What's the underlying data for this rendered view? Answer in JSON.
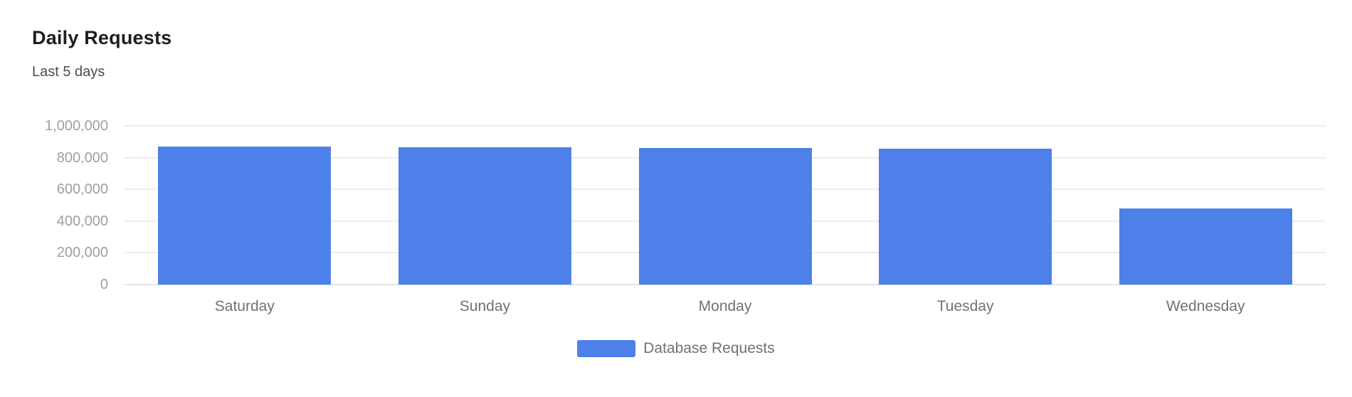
{
  "header": {
    "title": "Daily Requests",
    "subtitle": "Last 5 days"
  },
  "legend": {
    "label": "Database Requests"
  },
  "colors": {
    "bar": "#4d81e9",
    "grid": "#ededed",
    "axis_line": "#e4e4e4",
    "y_tick_text": "#9aa0a6",
    "x_tick_text": "#6e7277",
    "legend_text": "#6e7277",
    "title_text": "#1c1e21",
    "subtitle_text": "#474c54",
    "background": "#ffffff"
  },
  "chart_data": {
    "type": "bar",
    "title": "Daily Requests",
    "subtitle": "Last 5 days",
    "categories": [
      "Saturday",
      "Sunday",
      "Monday",
      "Tuesday",
      "Wednesday"
    ],
    "series": [
      {
        "name": "Database Requests",
        "color": "#4d81e9",
        "values": [
          870000,
          866000,
          860000,
          856000,
          480000
        ]
      }
    ],
    "xlabel": "",
    "ylabel": "",
    "ylim": [
      0,
      1000000
    ],
    "yticks": [
      0,
      200000,
      400000,
      600000,
      800000,
      1000000
    ],
    "ytick_labels": [
      "0",
      "200,000",
      "400,000",
      "600,000",
      "800,000",
      "1,000,000"
    ],
    "grid": true,
    "legend_position": "bottom"
  }
}
